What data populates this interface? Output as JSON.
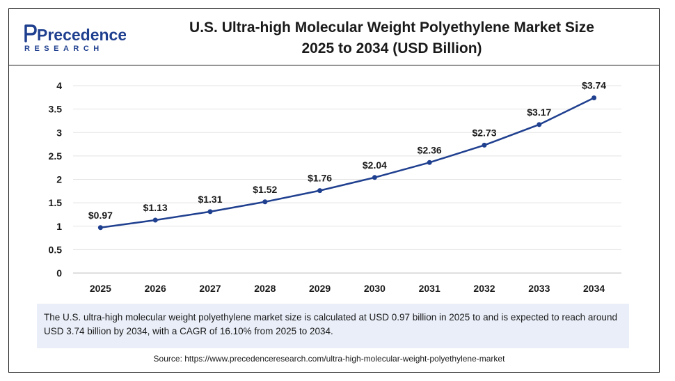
{
  "brand": {
    "name_main": "Precedence",
    "name_sub": "RESEARCH"
  },
  "header": {
    "title_line1": "U.S. Ultra-high Molecular Weight Polyethylene Market Size",
    "title_line2": "2025 to 2034 (USD Billion)"
  },
  "chart_data": {
    "type": "line",
    "title": "U.S. Ultra-high Molecular Weight Polyethylene Market Size 2025 to 2034 (USD Billion)",
    "categories": [
      "2025",
      "2026",
      "2027",
      "2028",
      "2029",
      "2030",
      "2031",
      "2032",
      "2033",
      "2034"
    ],
    "series": [
      {
        "values": [
          0.97,
          1.13,
          1.31,
          1.52,
          1.76,
          2.04,
          2.36,
          2.73,
          3.17,
          3.74
        ]
      }
    ],
    "data_labels": [
      "$0.97",
      "$1.13",
      "$1.31",
      "$1.52",
      "$1.76",
      "$2.04",
      "$2.36",
      "$2.73",
      "$3.17",
      "$3.74"
    ],
    "ylim": [
      0,
      4
    ],
    "yticks": [
      "0",
      "0.5",
      "1",
      "1.5",
      "2",
      "2.5",
      "3",
      "3.5",
      "4"
    ],
    "xlabel": "",
    "ylabel": "",
    "grid": true,
    "line_color": "#1f3f8f"
  },
  "footnote": {
    "text": "The U.S. ultra-high molecular weight polyethylene market size is calculated at USD 0.97 billion in 2025 to and is expected to reach around USD 3.74 billion by 2034, with a CAGR of 16.10% from 2025 to 2034."
  },
  "source": {
    "text": "Source: https://www.precedenceresearch.com/ultra-high-molecular-weight-polyethylene-market"
  }
}
